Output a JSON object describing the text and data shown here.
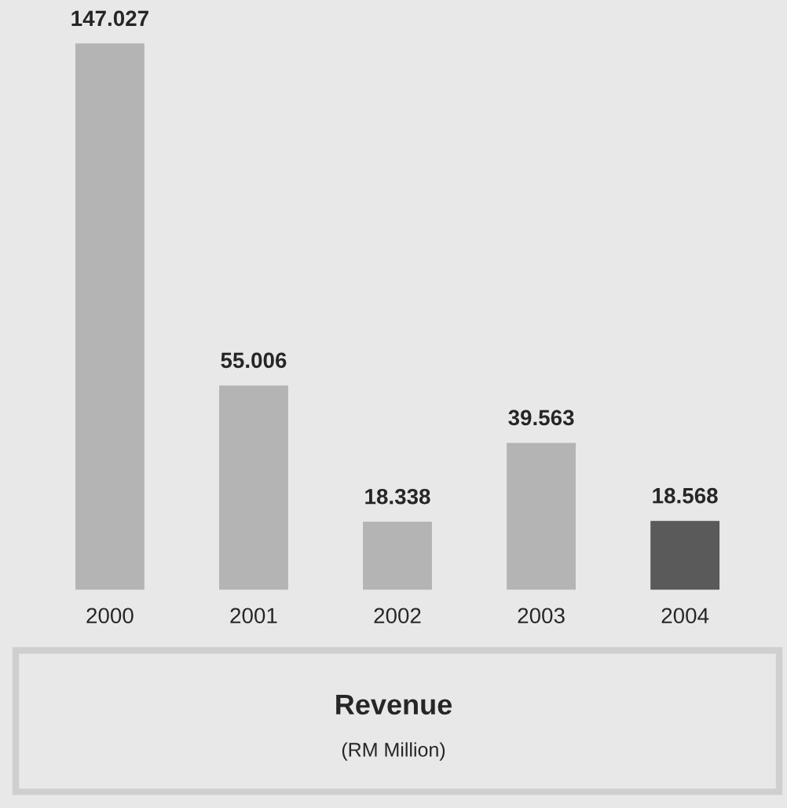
{
  "chart_data": {
    "type": "bar",
    "title": "Revenue",
    "subtitle": "(RM Million)",
    "categories": [
      "2000",
      "2001",
      "2002",
      "2003",
      "2004"
    ],
    "values": [
      147.027,
      55.006,
      18.338,
      39.563,
      18.568
    ],
    "value_labels": [
      "147.027",
      "55.006",
      "18.338",
      "39.563",
      "18.568"
    ],
    "colors": [
      "#b4b4b4",
      "#b4b4b4",
      "#b4b4b4",
      "#b4b4b4",
      "#5a5a5a"
    ],
    "grid": false,
    "legend": false
  }
}
